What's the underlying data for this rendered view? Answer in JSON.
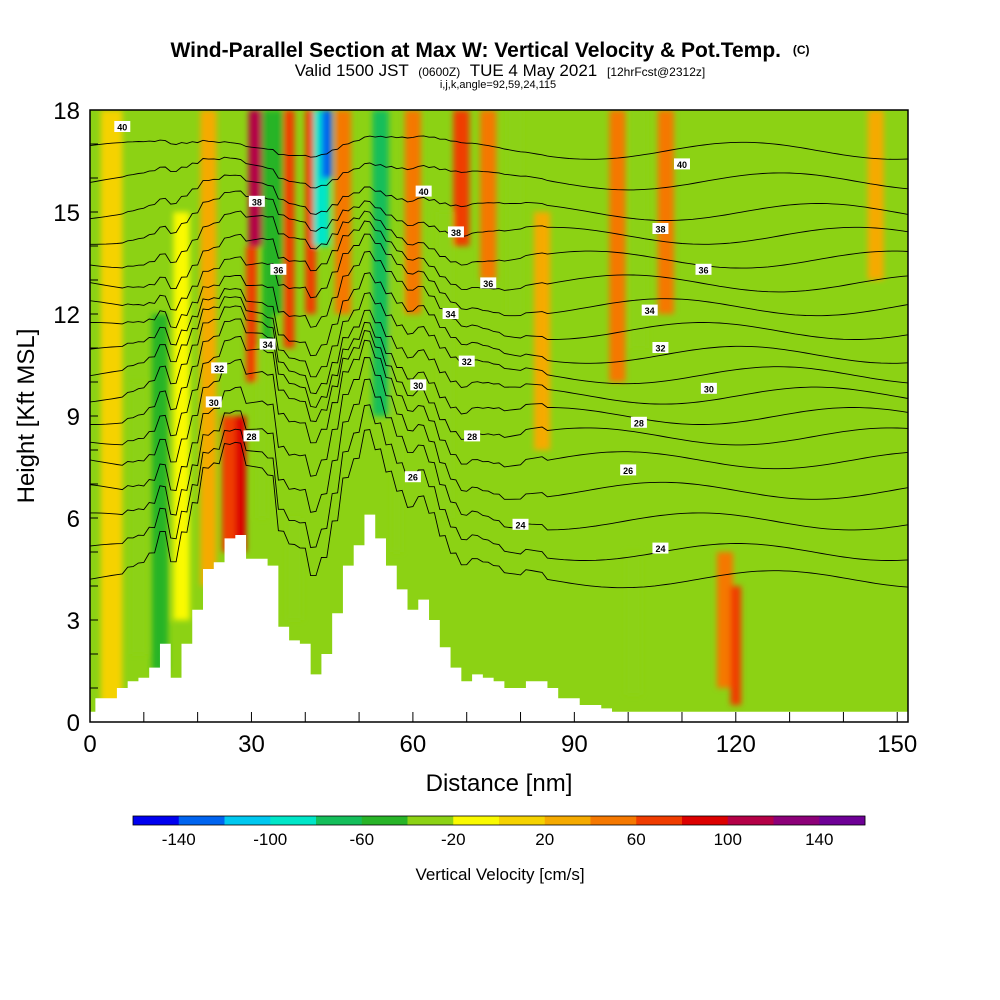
{
  "chart_data": {
    "type": "heatmap",
    "title": "Wind-Parallel Section at Max W: Vertical Velocity & Pot.Temp.",
    "title_mark": "(C)",
    "subtitle_prefix": "Valid 1500 JST",
    "subtitle_utc": "(0600Z)",
    "subtitle_date": "TUE 4 May 2021",
    "subtitle_fcst": "[12hrFcst@2312z]",
    "subtitle2": "i,j,k,angle=92,59,24,115",
    "xlabel": "Distance [nm]",
    "ylabel": "Height [Kft MSL]",
    "xlim": [
      0,
      152
    ],
    "ylim": [
      0,
      18
    ],
    "xticks": [
      "0",
      "30",
      "60",
      "90",
      "120",
      "150"
    ],
    "xtick_values": [
      0,
      30,
      60,
      90,
      120,
      150
    ],
    "yticks": [
      "0",
      "3",
      "6",
      "9",
      "12",
      "15",
      "18"
    ],
    "ytick_values": [
      0,
      3,
      6,
      9,
      12,
      15,
      18
    ],
    "colorbar": {
      "label": "Vertical Velocity [cm/s]",
      "bounds": [
        -160,
        160
      ],
      "tick_labels": [
        "-140",
        "-100",
        "-60",
        "-20",
        "20",
        "60",
        "100",
        "140"
      ],
      "tick_values": [
        -140,
        -100,
        -60,
        -20,
        20,
        60,
        100,
        140
      ],
      "colors": [
        "#0000f0",
        "#0064f0",
        "#00c8f0",
        "#00e6c8",
        "#14be5a",
        "#28b428",
        "#8cd214",
        "#fafa00",
        "#f5d200",
        "#f5aa00",
        "#f57800",
        "#f03c00",
        "#dc0000",
        "#b40046",
        "#8c0078",
        "#6e0096"
      ]
    },
    "terrain_profile": {
      "x": [
        0,
        1,
        3,
        5,
        7,
        9,
        11,
        13,
        15,
        17,
        19,
        21,
        23,
        25,
        27,
        29,
        31,
        33,
        35,
        37,
        39,
        41,
        43,
        45,
        47,
        49,
        51,
        53,
        55,
        57,
        59,
        61,
        63,
        65,
        67,
        69,
        71,
        73,
        75,
        77,
        79,
        81,
        83,
        85,
        87,
        89,
        91,
        93,
        95,
        97,
        100,
        105,
        110,
        120,
        130,
        140,
        150,
        152
      ],
      "height_kft": [
        0.3,
        0.7,
        0.7,
        1.0,
        1.2,
        1.3,
        1.6,
        2.3,
        1.3,
        2.3,
        3.3,
        4.5,
        4.7,
        5.4,
        5.5,
        4.8,
        4.8,
        4.6,
        2.8,
        2.4,
        2.3,
        1.4,
        2.0,
        3.2,
        4.6,
        5.2,
        6.1,
        5.4,
        4.6,
        3.9,
        3.3,
        3.6,
        3.0,
        2.2,
        1.6,
        1.2,
        1.4,
        1.3,
        1.2,
        1.0,
        1.0,
        1.2,
        1.2,
        1.0,
        0.7,
        0.7,
        0.5,
        0.5,
        0.4,
        0.3,
        0.3,
        0.3,
        0.3,
        0.3,
        0.3,
        0.3,
        0.3,
        0.3
      ]
    },
    "w_features": [
      {
        "x": 4,
        "x_width": 4,
        "y_bottom": 0.5,
        "y_top": 18,
        "w": 15
      },
      {
        "x": 9,
        "x_width": 3,
        "y_bottom": 2,
        "y_top": 10,
        "w": -30
      },
      {
        "x": 13,
        "x_width": 3,
        "y_bottom": 1.5,
        "y_top": 12,
        "w": -50
      },
      {
        "x": 17,
        "x_width": 3,
        "y_bottom": 3,
        "y_top": 15,
        "w": -20
      },
      {
        "x": 22,
        "x_width": 3,
        "y_bottom": 4,
        "y_top": 18,
        "w": 30
      },
      {
        "x": 26,
        "x_width": 3,
        "y_bottom": 5,
        "y_top": 9,
        "w": 70
      },
      {
        "x": 28,
        "x_width": 2,
        "y_bottom": 5,
        "y_top": 9,
        "w": 90
      },
      {
        "x": 31,
        "x_width": 3,
        "y_bottom": 14,
        "y_top": 18,
        "w": 110
      },
      {
        "x": 30,
        "x_width": 2,
        "y_bottom": 10,
        "y_top": 14,
        "w": 70
      },
      {
        "x": 33,
        "x_width": 2,
        "y_bottom": 11,
        "y_top": 18,
        "w": -60
      },
      {
        "x": 32,
        "x_width": 2,
        "y_bottom": 6,
        "y_top": 11,
        "w": -40
      },
      {
        "x": 35,
        "x_width": 2,
        "y_bottom": 12,
        "y_top": 18,
        "w": -50
      },
      {
        "x": 37,
        "x_width": 2,
        "y_bottom": 11,
        "y_top": 18,
        "w": 70
      },
      {
        "x": 38,
        "x_width": 3,
        "y_bottom": 3,
        "y_top": 6,
        "w": -30
      },
      {
        "x": 41,
        "x_width": 2,
        "y_bottom": 12,
        "y_top": 18,
        "w": 60
      },
      {
        "x": 43,
        "x_width": 3,
        "y_bottom": 14,
        "y_top": 18,
        "w": -90
      },
      {
        "x": 44,
        "x_width": 2,
        "y_bottom": 16,
        "y_top": 18,
        "w": -130
      },
      {
        "x": 47,
        "x_width": 3,
        "y_bottom": 12,
        "y_top": 18,
        "w": 40
      },
      {
        "x": 54,
        "x_width": 3,
        "y_bottom": 9,
        "y_top": 18,
        "w": -70
      },
      {
        "x": 57,
        "x_width": 2,
        "y_bottom": 5,
        "y_top": 14,
        "w": -30
      },
      {
        "x": 60,
        "x_width": 3,
        "y_bottom": 12,
        "y_top": 18,
        "w": 40
      },
      {
        "x": 66,
        "x_width": 3,
        "y_bottom": 6,
        "y_top": 15,
        "w": -30
      },
      {
        "x": 69,
        "x_width": 3,
        "y_bottom": 14,
        "y_top": 18,
        "w": 60
      },
      {
        "x": 74,
        "x_width": 3,
        "y_bottom": 13,
        "y_top": 18,
        "w": 50
      },
      {
        "x": 79,
        "x_width": 3,
        "y_bottom": 12,
        "y_top": 18,
        "w": -30
      },
      {
        "x": 84,
        "x_width": 3,
        "y_bottom": 8,
        "y_top": 15,
        "w": 30
      },
      {
        "x": 98,
        "x_width": 3,
        "y_bottom": 10,
        "y_top": 18,
        "w": 40
      },
      {
        "x": 102,
        "x_width": 3,
        "y_bottom": 11,
        "y_top": 18,
        "w": -30
      },
      {
        "x": 107,
        "x_width": 3,
        "y_bottom": 12,
        "y_top": 18,
        "w": 40
      },
      {
        "x": 118,
        "x_width": 3,
        "y_bottom": 1,
        "y_top": 5,
        "w": 40
      },
      {
        "x": 120,
        "x_width": 2,
        "y_bottom": 0.5,
        "y_top": 4,
        "w": 70
      },
      {
        "x": 101,
        "x_width": 3,
        "y_bottom": 0.8,
        "y_top": 5,
        "w": -30
      },
      {
        "x": 146,
        "x_width": 3,
        "y_bottom": 13,
        "y_top": 18,
        "w": 20
      }
    ],
    "theta_contours": {
      "levels": [
        24,
        25,
        26,
        27,
        28,
        29,
        30,
        31,
        32,
        33,
        34,
        35,
        36,
        37,
        38,
        39,
        40,
        41
      ],
      "base_height_kft": [
        4.2,
        5.0,
        5.9,
        6.8,
        7.7,
        8.4,
        9.0,
        9.6,
        10.2,
        10.8,
        11.5,
        12.2,
        12.9,
        13.6,
        14.3,
        15.0,
        15.9,
        16.8
      ],
      "labels": [
        {
          "text": "40",
          "x": 6,
          "y": 17.5
        },
        {
          "text": "38",
          "x": 31,
          "y": 15.3
        },
        {
          "text": "36",
          "x": 35,
          "y": 13.3
        },
        {
          "text": "34",
          "x": 33,
          "y": 11.1
        },
        {
          "text": "32",
          "x": 24,
          "y": 10.4
        },
        {
          "text": "30",
          "x": 23,
          "y": 9.4
        },
        {
          "text": "28",
          "x": 30,
          "y": 8.4
        },
        {
          "text": "40",
          "x": 62,
          "y": 15.6
        },
        {
          "text": "38",
          "x": 68,
          "y": 14.4
        },
        {
          "text": "36",
          "x": 74,
          "y": 12.9
        },
        {
          "text": "34",
          "x": 67,
          "y": 12.0
        },
        {
          "text": "32",
          "x": 70,
          "y": 10.6
        },
        {
          "text": "30",
          "x": 61,
          "y": 9.9
        },
        {
          "text": "28",
          "x": 71,
          "y": 8.4
        },
        {
          "text": "26",
          "x": 60,
          "y": 7.2
        },
        {
          "text": "24",
          "x": 80,
          "y": 5.8
        },
        {
          "text": "40",
          "x": 110,
          "y": 16.4
        },
        {
          "text": "38",
          "x": 106,
          "y": 14.5
        },
        {
          "text": "36",
          "x": 114,
          "y": 13.3
        },
        {
          "text": "34",
          "x": 104,
          "y": 12.1
        },
        {
          "text": "32",
          "x": 106,
          "y": 11.0
        },
        {
          "text": "30",
          "x": 115,
          "y": 9.8
        },
        {
          "text": "28",
          "x": 102,
          "y": 8.8
        },
        {
          "text": "26",
          "x": 100,
          "y": 7.4
        },
        {
          "text": "24",
          "x": 106,
          "y": 5.1
        }
      ]
    }
  }
}
